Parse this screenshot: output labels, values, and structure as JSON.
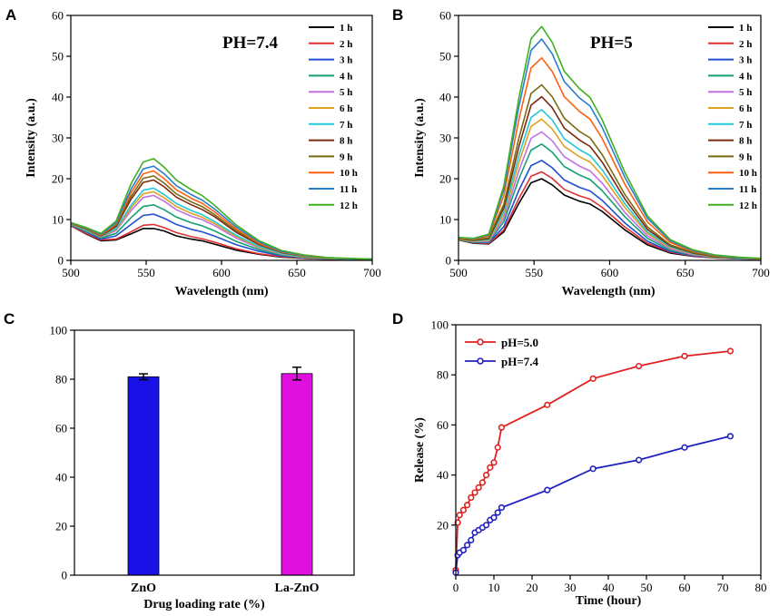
{
  "colors": {
    "spectra": [
      "#000000",
      "#e03030",
      "#1f4fd0",
      "#15a070",
      "#c070e0",
      "#e0a020",
      "#20c8d8",
      "#7a2a10",
      "#7a6a10",
      "#ff6010",
      "#2a7fd0",
      "#40b020"
    ],
    "bar_zno": "#1a10e8",
    "bar_lazno": "#e010e0",
    "ph5": "#e02020",
    "ph74": "#2020c0"
  },
  "chart_data": [
    {
      "panel": "A",
      "type": "line",
      "title": "PH=7.4",
      "xlabel": "Wavelength (nm)",
      "ylabel": "Intensity (a.u.)",
      "xlim": [
        500,
        700
      ],
      "ylim": [
        0,
        60
      ],
      "xticks": [
        "500",
        "550",
        "600",
        "650",
        "700"
      ],
      "yticks": [
        "0",
        "10",
        "20",
        "30",
        "40",
        "50",
        "60"
      ],
      "x": [
        500,
        510,
        520,
        530,
        540,
        548,
        555,
        562,
        570,
        580,
        587,
        595,
        610,
        625,
        640,
        655,
        670,
        685,
        700
      ],
      "series": [
        {
          "name": "1 h",
          "values": [
            8.5,
            6.5,
            4.8,
            5.0,
            6.5,
            7.8,
            7.8,
            7.2,
            6.0,
            5.2,
            4.8,
            4.0,
            2.5,
            1.5,
            0.8,
            0.5,
            0.3,
            0.2,
            0.2
          ]
        },
        {
          "name": "2 h",
          "values": [
            8.5,
            6.6,
            5.0,
            5.2,
            7.0,
            8.6,
            8.8,
            8.0,
            6.8,
            5.8,
            5.3,
            4.5,
            2.8,
            1.6,
            0.9,
            0.5,
            0.3,
            0.2,
            0.2
          ]
        },
        {
          "name": "3 h",
          "values": [
            8.6,
            7.0,
            5.2,
            6.0,
            8.8,
            11.0,
            11.3,
            10.3,
            8.8,
            7.6,
            7.0,
            6.0,
            3.8,
            2.2,
            1.1,
            0.6,
            0.4,
            0.3,
            0.2
          ]
        },
        {
          "name": "4 h",
          "values": [
            8.7,
            7.2,
            5.5,
            6.6,
            10.5,
            13.2,
            13.6,
            12.4,
            10.6,
            9.2,
            8.5,
            7.3,
            4.6,
            2.6,
            1.3,
            0.7,
            0.4,
            0.3,
            0.2
          ]
        },
        {
          "name": "5 h",
          "values": [
            8.8,
            7.4,
            5.7,
            7.3,
            12.2,
            15.4,
            15.9,
            14.5,
            12.4,
            10.8,
            10.0,
            8.6,
            5.4,
            3.0,
            1.5,
            0.8,
            0.5,
            0.3,
            0.2
          ]
        },
        {
          "name": "6 h",
          "values": [
            8.8,
            7.4,
            5.8,
            7.6,
            12.9,
            16.3,
            16.8,
            15.3,
            13.2,
            11.5,
            10.6,
            9.1,
            5.8,
            3.2,
            1.6,
            0.8,
            0.5,
            0.3,
            0.2
          ]
        },
        {
          "name": "7 h",
          "values": [
            8.9,
            7.5,
            5.9,
            7.8,
            13.5,
            17.2,
            17.7,
            16.1,
            13.9,
            12.2,
            11.2,
            9.6,
            6.1,
            3.4,
            1.7,
            0.9,
            0.5,
            0.3,
            0.2
          ]
        },
        {
          "name": "8 h",
          "values": [
            9.0,
            7.7,
            6.0,
            8.3,
            15.0,
            19.1,
            19.7,
            18.0,
            15.5,
            13.6,
            12.5,
            10.8,
            6.8,
            3.8,
            1.9,
            1.0,
            0.6,
            0.4,
            0.2
          ]
        },
        {
          "name": "9 h",
          "values": [
            9.0,
            7.8,
            6.1,
            8.6,
            15.7,
            20.1,
            20.7,
            18.9,
            16.3,
            14.3,
            13.2,
            11.3,
            7.2,
            4.0,
            2.0,
            1.0,
            0.6,
            0.4,
            0.3
          ]
        },
        {
          "name": "10 h",
          "values": [
            9.1,
            7.9,
            6.2,
            8.9,
            16.6,
            21.2,
            21.9,
            20.0,
            17.3,
            15.2,
            14.0,
            12.0,
            7.6,
            4.2,
            2.1,
            1.1,
            0.6,
            0.4,
            0.3
          ]
        },
        {
          "name": "11 h",
          "values": [
            9.2,
            8.0,
            6.4,
            9.2,
            17.5,
            22.4,
            23.1,
            21.2,
            18.3,
            16.1,
            14.8,
            12.7,
            8.1,
            4.5,
            2.2,
            1.2,
            0.7,
            0.4,
            0.3
          ]
        },
        {
          "name": "12 h",
          "values": [
            9.3,
            8.1,
            6.6,
            9.6,
            18.8,
            24.1,
            24.9,
            22.8,
            19.7,
            17.3,
            15.9,
            13.6,
            8.6,
            4.8,
            2.4,
            1.3,
            0.7,
            0.5,
            0.3
          ]
        }
      ]
    },
    {
      "panel": "B",
      "type": "line",
      "title": "PH=5",
      "xlabel": "Wavelength (nm)",
      "ylabel": "Intensity (a.u.)",
      "xlim": [
        500,
        700
      ],
      "ylim": [
        0,
        60
      ],
      "xticks": [
        "500",
        "550",
        "600",
        "650",
        "700"
      ],
      "yticks": [
        "0",
        "10",
        "20",
        "30",
        "40",
        "50",
        "60"
      ],
      "x": [
        500,
        510,
        520,
        530,
        540,
        548,
        555,
        562,
        570,
        580,
        587,
        595,
        610,
        625,
        640,
        655,
        670,
        685,
        700
      ],
      "series": [
        {
          "name": "1 h",
          "values": [
            5.0,
            4.2,
            4.0,
            7.0,
            14.0,
            19.0,
            20.0,
            18.5,
            16.0,
            14.5,
            13.8,
            12.0,
            7.5,
            3.8,
            1.8,
            1.0,
            0.6,
            0.4,
            0.3
          ]
        },
        {
          "name": "2 h",
          "values": [
            5.0,
            4.3,
            4.1,
            7.5,
            15.2,
            20.6,
            21.7,
            20.1,
            17.4,
            15.8,
            15.0,
            13.0,
            8.2,
            4.2,
            2.0,
            1.1,
            0.6,
            0.4,
            0.3
          ]
        },
        {
          "name": "3 h",
          "values": [
            5.1,
            4.4,
            4.3,
            8.3,
            17.2,
            23.2,
            24.5,
            22.7,
            19.7,
            17.9,
            17.0,
            14.7,
            9.2,
            4.7,
            2.2,
            1.2,
            0.7,
            0.4,
            0.3
          ]
        },
        {
          "name": "4 h",
          "values": [
            5.1,
            4.5,
            4.5,
            9.5,
            20.0,
            27.0,
            28.5,
            26.5,
            23.0,
            20.9,
            19.8,
            17.1,
            10.7,
            5.4,
            2.5,
            1.3,
            0.7,
            0.5,
            0.3
          ]
        },
        {
          "name": "5 h",
          "values": [
            5.2,
            4.6,
            4.7,
            10.3,
            22.0,
            29.9,
            31.5,
            29.3,
            25.4,
            23.1,
            21.9,
            18.9,
            11.8,
            6.0,
            2.8,
            1.4,
            0.8,
            0.5,
            0.3
          ]
        },
        {
          "name": "6 h",
          "values": [
            5.2,
            4.7,
            4.9,
            11.2,
            24.0,
            32.8,
            34.6,
            32.2,
            27.9,
            25.4,
            24.1,
            20.8,
            13.0,
            6.6,
            3.1,
            1.6,
            0.8,
            0.5,
            0.3
          ]
        },
        {
          "name": "7 h",
          "values": [
            5.3,
            4.8,
            5.1,
            11.9,
            25.7,
            35.0,
            36.9,
            34.4,
            29.8,
            27.1,
            25.7,
            22.2,
            13.9,
            7.0,
            3.3,
            1.7,
            0.9,
            0.5,
            0.4
          ]
        },
        {
          "name": "8 h",
          "values": [
            5.3,
            4.9,
            5.3,
            12.9,
            27.9,
            38.0,
            40.1,
            37.4,
            32.4,
            29.5,
            27.9,
            24.1,
            15.1,
            7.6,
            3.6,
            1.8,
            0.9,
            0.6,
            0.4
          ]
        },
        {
          "name": "9 h",
          "values": [
            5.4,
            5.0,
            5.5,
            13.8,
            30.0,
            40.9,
            43.0,
            40.1,
            34.8,
            31.6,
            30.0,
            25.9,
            16.2,
            8.2,
            3.8,
            1.9,
            1.0,
            0.6,
            0.4
          ]
        },
        {
          "name": "10 h",
          "values": [
            5.5,
            5.2,
            5.9,
            15.9,
            34.6,
            47.1,
            49.6,
            46.3,
            40.1,
            36.5,
            34.6,
            29.9,
            18.7,
            9.4,
            4.4,
            2.2,
            1.1,
            0.7,
            0.4
          ]
        },
        {
          "name": "11 h",
          "values": [
            5.6,
            5.3,
            6.2,
            17.4,
            37.8,
            51.4,
            54.2,
            50.6,
            43.8,
            39.8,
            37.8,
            32.6,
            20.4,
            10.3,
            4.8,
            2.4,
            1.2,
            0.7,
            0.5
          ]
        },
        {
          "name": "12 h",
          "values": [
            5.6,
            5.4,
            6.4,
            18.3,
            39.9,
            54.3,
            57.3,
            53.4,
            46.3,
            42.1,
            39.9,
            34.5,
            21.6,
            10.9,
            5.1,
            2.6,
            1.3,
            0.8,
            0.5
          ]
        }
      ]
    },
    {
      "panel": "C",
      "type": "bar",
      "xlabel": "Drug loading rate (%)",
      "ylabel": "",
      "ylim": [
        0,
        100
      ],
      "yticks": [
        "0",
        "20",
        "40",
        "60",
        "80",
        "100"
      ],
      "categories": [
        "ZnO",
        "La-ZnO"
      ],
      "values": [
        81.0,
        82.3
      ],
      "errors": [
        1.2,
        2.6
      ]
    },
    {
      "panel": "D",
      "type": "line",
      "xlabel": "Time (hour)",
      "ylabel": "Release (%)",
      "xlim": [
        0,
        80
      ],
      "ylim": [
        0,
        100
      ],
      "xticks": [
        "0",
        "10",
        "20",
        "30",
        "40",
        "50",
        "60",
        "70",
        "80"
      ],
      "yticks": [
        "20",
        "40",
        "60",
        "80",
        "100"
      ],
      "series": [
        {
          "name": "pH=5.0",
          "x": [
            0,
            0.5,
            1,
            2,
            3,
            4,
            5,
            6,
            7,
            8,
            9,
            10,
            11,
            12,
            24,
            36,
            48,
            60,
            72
          ],
          "values": [
            2,
            21,
            24,
            26,
            28,
            31,
            33,
            35,
            37,
            40,
            43,
            45,
            51,
            59,
            68,
            78.5,
            83.5,
            87.5,
            89.5
          ]
        },
        {
          "name": "pH=7.4",
          "x": [
            0,
            0.5,
            1,
            2,
            3,
            4,
            5,
            6,
            7,
            8,
            9,
            10,
            11,
            12,
            24,
            36,
            48,
            60,
            72
          ],
          "values": [
            1,
            8,
            9,
            10,
            12,
            14,
            17,
            18,
            19,
            20,
            22,
            23,
            25,
            27,
            34,
            42.5,
            46,
            51,
            55.5
          ]
        }
      ]
    }
  ]
}
